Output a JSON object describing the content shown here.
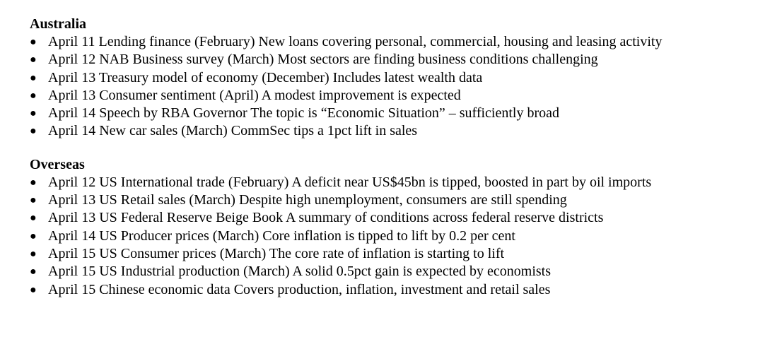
{
  "sections": [
    {
      "heading": "Australia",
      "items": [
        "April 11 Lending finance (February) New loans covering personal, commercial, housing and leasing activity",
        "April 12 NAB Business survey (March) Most sectors are finding business conditions challenging",
        "April 13 Treasury model of economy (December) Includes latest wealth data",
        "April 13 Consumer sentiment (April) A modest improvement is expected",
        "April 14 Speech by RBA Governor The topic is “Economic Situation” – sufficiently broad",
        "April 14 New car sales (March) CommSec tips a 1pct lift in sales"
      ]
    },
    {
      "heading": "Overseas",
      "items": [
        "April 12 US International trade (February) A deficit near US$45bn is tipped, boosted in part by oil imports",
        "April 13 US Retail sales (March) Despite high unemployment, consumers are still spending",
        "April 13 US Federal Reserve Beige Book A summary of conditions across federal reserve districts",
        "April 14 US Producer prices (March) Core inflation is tipped to lift by 0.2 per cent",
        "April 15 US Consumer prices (March) The core rate of inflation is starting to lift",
        "April 15 US Industrial production (March) A solid 0.5pct gain is expected by economists",
        "April 15 Chinese economic data Covers production, inflation, investment and retail sales"
      ]
    }
  ]
}
